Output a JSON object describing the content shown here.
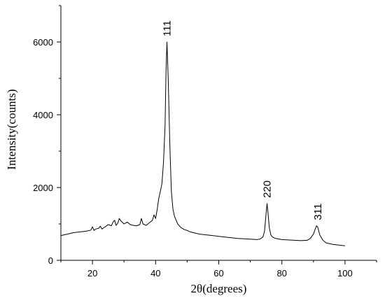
{
  "chart_data": {
    "type": "line",
    "title": "",
    "xlabel": "2θ(degrees)",
    "ylabel": "Intensity(counts)",
    "xlim": [
      10,
      110
    ],
    "ylim": [
      0,
      7000
    ],
    "x_ticks": [
      20,
      40,
      60,
      80,
      100
    ],
    "y_ticks": [
      0,
      2000,
      4000,
      6000
    ],
    "grid": false,
    "legend": "none",
    "series": [
      {
        "color": "#000000",
        "x": [
          10,
          12,
          14,
          16,
          18,
          19.5,
          20,
          20.5,
          21,
          22,
          22.5,
          23,
          24,
          25,
          26,
          26.5,
          27,
          27.5,
          28,
          28.5,
          29,
          30,
          31,
          32,
          33,
          34,
          35,
          35.5,
          36,
          37,
          38,
          39,
          39.5,
          40,
          40.5,
          41,
          41.5,
          42,
          42.5,
          43,
          43.3,
          43.6,
          44,
          44.5,
          45,
          45.5,
          46,
          47,
          48,
          49,
          50,
          51,
          52,
          54,
          56,
          58,
          60,
          62,
          64,
          66,
          68,
          70,
          72,
          73,
          74,
          74.5,
          75,
          75.3,
          75.6,
          76,
          76.5,
          77,
          78,
          80,
          82,
          84,
          86,
          88,
          89,
          90,
          90.5,
          91,
          91.4,
          92,
          93,
          94,
          96,
          98,
          100
        ],
        "y": [
          680,
          720,
          760,
          780,
          800,
          830,
          920,
          820,
          860,
          880,
          940,
          860,
          920,
          980,
          950,
          1050,
          1100,
          960,
          1020,
          1150,
          1080,
          1000,
          1050,
          980,
          960,
          950,
          980,
          1150,
          1000,
          960,
          1030,
          1100,
          1250,
          1150,
          1400,
          1700,
          1900,
          2100,
          2700,
          3700,
          5200,
          6000,
          5000,
          3200,
          1900,
          1400,
          1200,
          1000,
          900,
          850,
          820,
          780,
          760,
          720,
          700,
          680,
          660,
          640,
          620,
          600,
          590,
          580,
          570,
          580,
          640,
          800,
          1300,
          1560,
          1300,
          900,
          700,
          640,
          600,
          570,
          560,
          550,
          540,
          550,
          600,
          720,
          850,
          950,
          900,
          700,
          550,
          480,
          440,
          420,
          400
        ]
      }
    ],
    "annotations": [
      {
        "text": "111",
        "x": 43.6,
        "y": 6000
      },
      {
        "text": "220",
        "x": 75.3,
        "y": 1560
      },
      {
        "text": "311",
        "x": 91.4,
        "y": 950
      }
    ]
  }
}
